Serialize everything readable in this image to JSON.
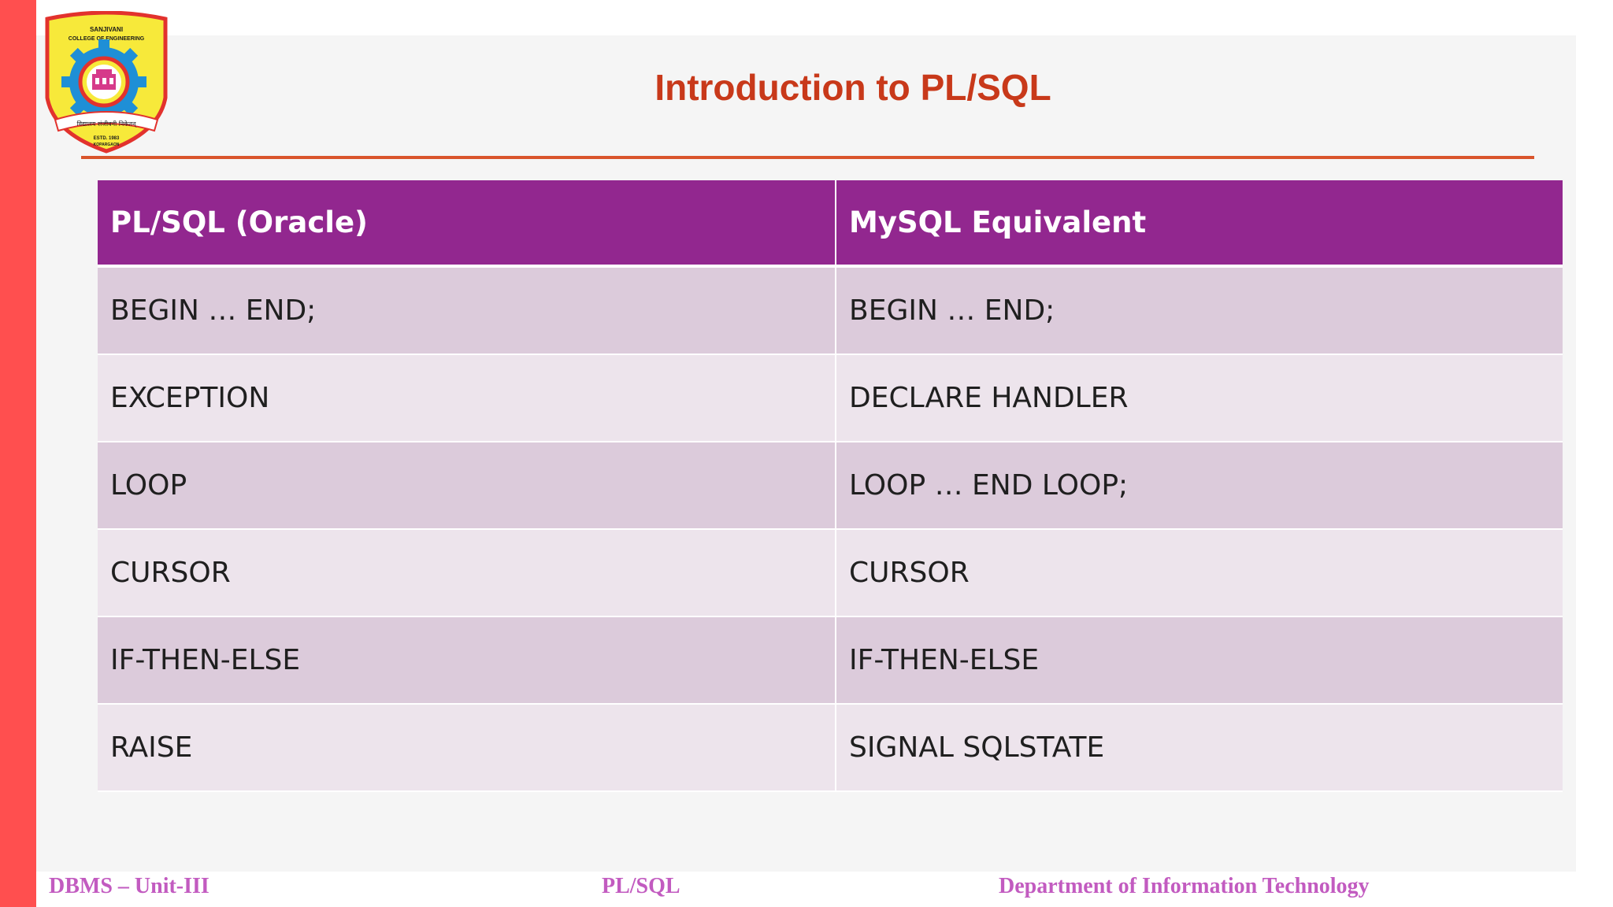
{
  "slide": {
    "title": "Introduction to PL/SQL",
    "logo": {
      "name": "college-crest-icon",
      "top_text": "SANJIVANI",
      "sub_text": "COLLEGE OF ENGINEERING",
      "motto": "विद्यालय संजीवनी निकेतन्",
      "estd": "ESTD. 1983",
      "place": "KOPARGAON",
      "colors": {
        "shield": "#f7e93a",
        "border": "#e2322d",
        "gear": "#1f8fd6"
      }
    }
  },
  "table": {
    "headers": [
      "PL/SQL (Oracle)",
      "MySQL Equivalent"
    ],
    "rows": [
      [
        "BEGIN … END;",
        "BEGIN … END;"
      ],
      [
        "EXCEPTION",
        "DECLARE HANDLER"
      ],
      [
        "LOOP",
        "LOOP … END LOOP;"
      ],
      [
        "CURSOR",
        "CURSOR"
      ],
      [
        "IF-THEN-ELSE",
        "IF-THEN-ELSE"
      ],
      [
        "RAISE",
        "SIGNAL SQLSTATE"
      ]
    ],
    "colors": {
      "header": "#92278f",
      "row_odd": "#dccbdb",
      "row_even": "#ede4ec"
    }
  },
  "footer": {
    "left": "DBMS – Unit-III",
    "center": "PL/SQL",
    "right": "Department of Information Technology"
  },
  "colors": {
    "accent_bar": "#ff4f4f",
    "title": "#c8391a",
    "footer": "#c25bc0"
  }
}
